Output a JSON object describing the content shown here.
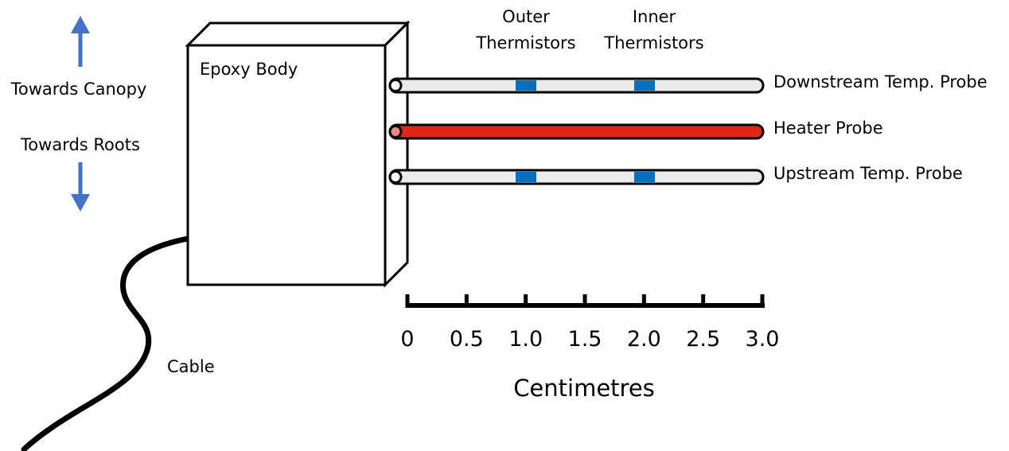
{
  "labels": {
    "towards_canopy": "Towards Canopy",
    "towards_roots": "Towards Roots",
    "epoxy_body": "Epoxy Body",
    "cable": "Cable",
    "outer_thermistors_line1": "Outer",
    "outer_thermistors_line2": "Thermistors",
    "inner_thermistors_line1": "Inner",
    "inner_thermistors_line2": "Thermistors",
    "downstream_probe": "Downstream Temp. Probe",
    "heater_probe": "Heater Probe",
    "upstream_probe": "Upstream Temp. Probe"
  },
  "scale": {
    "title": "Centimetres",
    "ticks": [
      "0",
      "0.5",
      "1.0",
      "1.5",
      "2.0",
      "2.5",
      "3.0"
    ]
  },
  "colors": {
    "arrow": "#4472c4",
    "thermistor": "#0070c0",
    "heater": "#e0261b",
    "probe_fill": "#ebebeb",
    "outline": "#000000"
  }
}
